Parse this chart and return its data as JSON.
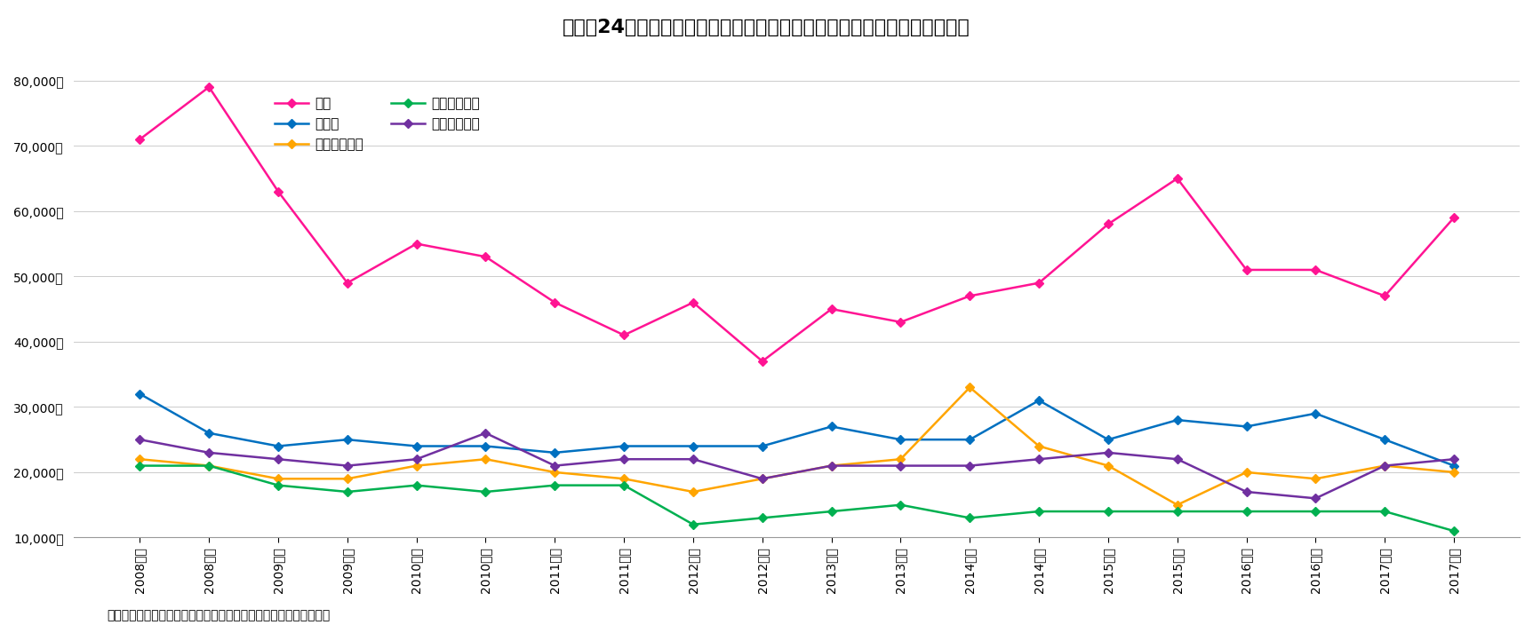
{
  "title": "図表－24　主要都市のプライム商業エリア路面店舗賃料（月･坪当たり）",
  "source": "（出所）日本不動産研究所、ビーエーシー・アーバンプロジェクト",
  "x_labels": [
    "2008上期",
    "2008下期",
    "2009上期",
    "2009下期",
    "2010上期",
    "2010下期",
    "2011上期",
    "2011下期",
    "2012上期",
    "2012下期",
    "2013上期",
    "2013下期",
    "2014上期",
    "2014下期",
    "2015上期",
    "2015下期",
    "2016上期",
    "2016下期",
    "2017上期",
    "2017下期"
  ],
  "series": {
    "銀座": {
      "color": "#FF1493",
      "marker": "D",
      "values": [
        71000,
        79000,
        63000,
        49000,
        55000,
        53000,
        46000,
        41000,
        46000,
        37000,
        45000,
        43000,
        47000,
        49000,
        58000,
        65000,
        51000,
        51000,
        47000,
        59000
      ]
    },
    "心斎橋": {
      "color": "#0070C0",
      "marker": "D",
      "values": [
        32000,
        26000,
        24000,
        25000,
        24000,
        24000,
        23000,
        24000,
        24000,
        24000,
        27000,
        25000,
        25000,
        31000,
        25000,
        28000,
        27000,
        29000,
        25000,
        21000
      ]
    },
    "栄（名古屋）": {
      "color": "#FFA500",
      "marker": "D",
      "values": [
        22000,
        21000,
        19000,
        19000,
        21000,
        22000,
        20000,
        19000,
        17000,
        19000,
        21000,
        22000,
        33000,
        24000,
        21000,
        15000,
        20000,
        19000,
        21000,
        20000
      ]
    },
    "大通（札幌）": {
      "color": "#00B050",
      "marker": "D",
      "values": [
        21000,
        21000,
        18000,
        17000,
        18000,
        17000,
        18000,
        18000,
        12000,
        13000,
        14000,
        15000,
        13000,
        14000,
        14000,
        14000,
        14000,
        14000,
        14000,
        11000
      ]
    },
    "天神（福岡）": {
      "color": "#7030A0",
      "marker": "D",
      "values": [
        25000,
        23000,
        22000,
        21000,
        22000,
        26000,
        21000,
        22000,
        22000,
        19000,
        21000,
        21000,
        21000,
        22000,
        23000,
        22000,
        17000,
        16000,
        21000,
        22000
      ]
    }
  },
  "ylim": [
    10000,
    80000
  ],
  "yticks": [
    10000,
    20000,
    30000,
    40000,
    50000,
    60000,
    70000,
    80000
  ],
  "background_color": "#FFFFFF"
}
